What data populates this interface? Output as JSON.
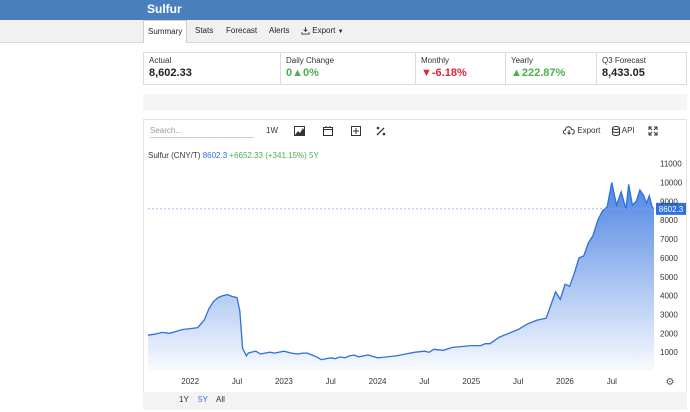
{
  "app": {
    "title": "Sulfur"
  },
  "tabs": [
    {
      "label": "Summary",
      "active": true
    },
    {
      "label": "Stats"
    },
    {
      "label": "Forecast"
    },
    {
      "label": "Alerts"
    },
    {
      "label": "Export"
    }
  ],
  "stats": [
    {
      "label": "Actual",
      "value": "8,602.33",
      "trend": "none"
    },
    {
      "label": "Daily Change",
      "value": "0▲0%",
      "trend": "up"
    },
    {
      "label": "Monthly",
      "value": "▼-6.18%",
      "trend": "down"
    },
    {
      "label": "Yearly",
      "value": "▲222.87%",
      "trend": "up"
    },
    {
      "label": "Q3 Forecast",
      "value": "8,433.05",
      "trend": "none"
    }
  ],
  "toolbar": {
    "search_placeholder": "Search...",
    "interval": "1W",
    "export_label": "Export",
    "api_label": "API"
  },
  "legend": {
    "name": "Sulfur (CNY/T)",
    "value": "8602.3",
    "change": "+6652.33 (+341.15%) 5Y"
  },
  "range": {
    "options": [
      "1Y",
      "5Y",
      "All"
    ],
    "selected": "5Y"
  },
  "colors": {
    "header": "#4a7fbd",
    "line": "#2f6fde",
    "up": "#4cae4c",
    "down": "#d9263a"
  },
  "chart_data": {
    "type": "area",
    "series": [
      {
        "name": "Sulfur (CNY/T)"
      }
    ],
    "x": [
      2021.55,
      2021.62,
      2021.7,
      2021.78,
      2021.85,
      2021.92,
      2022.0,
      2022.08,
      2022.15,
      2022.2,
      2022.25,
      2022.3,
      2022.35,
      2022.4,
      2022.45,
      2022.5,
      2022.53,
      2022.56,
      2022.6,
      2022.62,
      2022.65,
      2022.7,
      2022.75,
      2022.8,
      2022.85,
      2022.9,
      2023.0,
      2023.08,
      2023.15,
      2023.2,
      2023.25,
      2023.3,
      2023.35,
      2023.4,
      2023.45,
      2023.5,
      2023.55,
      2023.6,
      2023.65,
      2023.7,
      2023.75,
      2023.8,
      2023.85,
      2023.9,
      2024.0,
      2024.1,
      2024.2,
      2024.3,
      2024.4,
      2024.5,
      2024.55,
      2024.6,
      2024.7,
      2024.8,
      2024.9,
      2025.0,
      2025.1,
      2025.15,
      2025.2,
      2025.3,
      2025.4,
      2025.5,
      2025.6,
      2025.7,
      2025.8,
      2025.85,
      2025.9,
      2025.95,
      2026.0,
      2026.05,
      2026.1,
      2026.15,
      2026.2,
      2026.25,
      2026.3,
      2026.35,
      2026.4,
      2026.45,
      2026.5,
      2026.55,
      2026.6,
      2026.65,
      2026.68,
      2026.72,
      2026.76,
      2026.8,
      2026.84,
      2026.87,
      2026.9,
      2026.93,
      2026.95
    ],
    "values": [
      1900,
      1950,
      2050,
      2000,
      2100,
      2200,
      2250,
      2300,
      2700,
      3300,
      3700,
      3900,
      4000,
      4050,
      3950,
      3900,
      3200,
      1200,
      800,
      950,
      1000,
      1050,
      900,
      950,
      1000,
      950,
      1050,
      950,
      900,
      950,
      950,
      850,
      750,
      600,
      650,
      700,
      650,
      750,
      700,
      800,
      850,
      750,
      800,
      850,
      700,
      750,
      800,
      900,
      1000,
      1050,
      1000,
      1150,
      1100,
      1250,
      1300,
      1350,
      1350,
      1450,
      1450,
      1800,
      2000,
      2200,
      2500,
      2700,
      2800,
      3500,
      4200,
      3800,
      4600,
      4500,
      5200,
      6000,
      6100,
      6800,
      7200,
      8000,
      8500,
      8700,
      10000,
      8800,
      9500,
      8600,
      9900,
      8800,
      9000,
      9600,
      9300,
      8900,
      9300,
      8700,
      8602.3
    ],
    "current_value": 8602.3,
    "x_ticks": [
      "2022",
      "Jul",
      "2023",
      "Jul",
      "2024",
      "Jul",
      "2025",
      "Jul",
      "2026",
      "Jul"
    ],
    "y_ticks": [
      1000,
      2000,
      3000,
      4000,
      5000,
      6000,
      7000,
      8000,
      9000,
      10000,
      11000
    ],
    "xlim": [
      2021.55,
      2026.95
    ],
    "ylim": [
      0,
      11300
    ]
  }
}
